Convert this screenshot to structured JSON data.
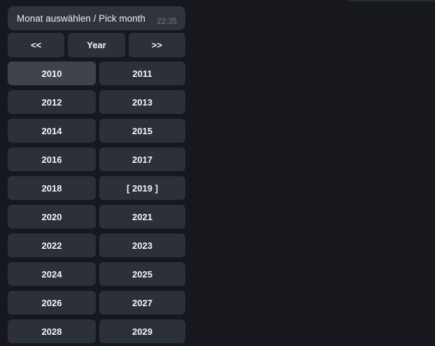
{
  "message": {
    "text": "Monat auswählen / Pick month",
    "time": "22:35"
  },
  "nav": {
    "prev": "<<",
    "title": "Year",
    "next": ">>"
  },
  "years": {
    "rows": [
      [
        "2010",
        "2011"
      ],
      [
        "2012",
        "2013"
      ],
      [
        "2014",
        "2015"
      ],
      [
        "2016",
        "2017"
      ],
      [
        "2018",
        "[ 2019 ]"
      ],
      [
        "2020",
        "2021"
      ],
      [
        "2022",
        "2023"
      ],
      [
        "2024",
        "2025"
      ],
      [
        "2026",
        "2027"
      ],
      [
        "2028",
        "2029"
      ]
    ],
    "highlighted_year": "2010",
    "selected_year": "2019"
  },
  "colors": {
    "background": "#16181e",
    "bubble": "#2e333c",
    "button": "#2b3039",
    "button_highlight": "#3e434c",
    "text": "#f5f6f7",
    "timestamp": "#757b83"
  }
}
